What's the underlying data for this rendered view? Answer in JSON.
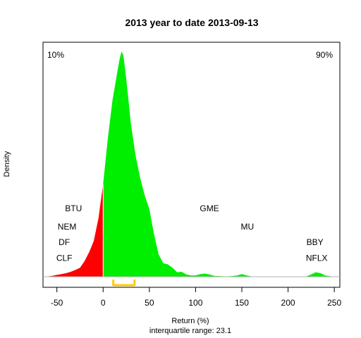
{
  "chart_data": {
    "type": "area",
    "title": "2013  year to date 2013-09-13",
    "xlabel": "Return (%)",
    "ylabel": "Density",
    "subtitle": "interquartile range: 23.1",
    "xlim": [
      -65,
      256
    ],
    "x_ticks": [
      -50,
      0,
      50,
      100,
      150,
      200,
      250
    ],
    "ylim": [
      0,
      1.0
    ],
    "grid": false,
    "split_at": 0,
    "corner_labels": {
      "left": {
        "text": "10%",
        "color": "#ff0000"
      },
      "right": {
        "text": "90%",
        "color": "#00b000"
      }
    },
    "colors": {
      "low": "#ff0000",
      "high": "#00ee00",
      "iqr": "#ffcc00"
    },
    "iqr": [
      11,
      34
    ],
    "density": {
      "x": [
        -62,
        -55,
        -50,
        -45,
        -40,
        -35,
        -30,
        -25,
        -20,
        -15,
        -10,
        -5,
        0,
        5,
        10,
        15,
        18,
        20,
        22,
        25,
        28,
        30,
        35,
        40,
        45,
        50,
        55,
        60,
        65,
        70,
        75,
        80,
        85,
        90,
        95,
        100,
        105,
        110,
        115,
        120,
        125,
        130,
        135,
        140,
        145,
        150,
        155,
        160,
        165,
        170,
        180,
        200,
        210,
        220,
        225,
        230,
        235,
        240,
        250,
        255
      ],
      "y": [
        0.0,
        0.004,
        0.008,
        0.012,
        0.016,
        0.022,
        0.03,
        0.04,
        0.07,
        0.11,
        0.16,
        0.26,
        0.41,
        0.61,
        0.78,
        0.9,
        0.97,
        1.0,
        0.98,
        0.88,
        0.76,
        0.68,
        0.54,
        0.44,
        0.36,
        0.3,
        0.19,
        0.1,
        0.06,
        0.055,
        0.04,
        0.02,
        0.022,
        0.01,
        0.006,
        0.006,
        0.012,
        0.014,
        0.01,
        0.004,
        0.003,
        0.002,
        0.002,
        0.003,
        0.006,
        0.012,
        0.006,
        0.002,
        0.001,
        0.0,
        0.0,
        0.0,
        0.0,
        0.002,
        0.01,
        0.02,
        0.016,
        0.006,
        0.0,
        0.0
      ]
    },
    "annotations": [
      {
        "text": "BTU",
        "x": -32,
        "y": 0.29
      },
      {
        "text": "NEM",
        "x": -39,
        "y": 0.21
      },
      {
        "text": "DF",
        "x": -42,
        "y": 0.14
      },
      {
        "text": "CLF",
        "x": -42,
        "y": 0.07
      },
      {
        "text": "GME",
        "x": 115,
        "y": 0.29
      },
      {
        "text": "MU",
        "x": 156,
        "y": 0.21
      },
      {
        "text": "BBY",
        "x": 229,
        "y": 0.14
      },
      {
        "text": "NFLX",
        "x": 231,
        "y": 0.07
      }
    ]
  }
}
